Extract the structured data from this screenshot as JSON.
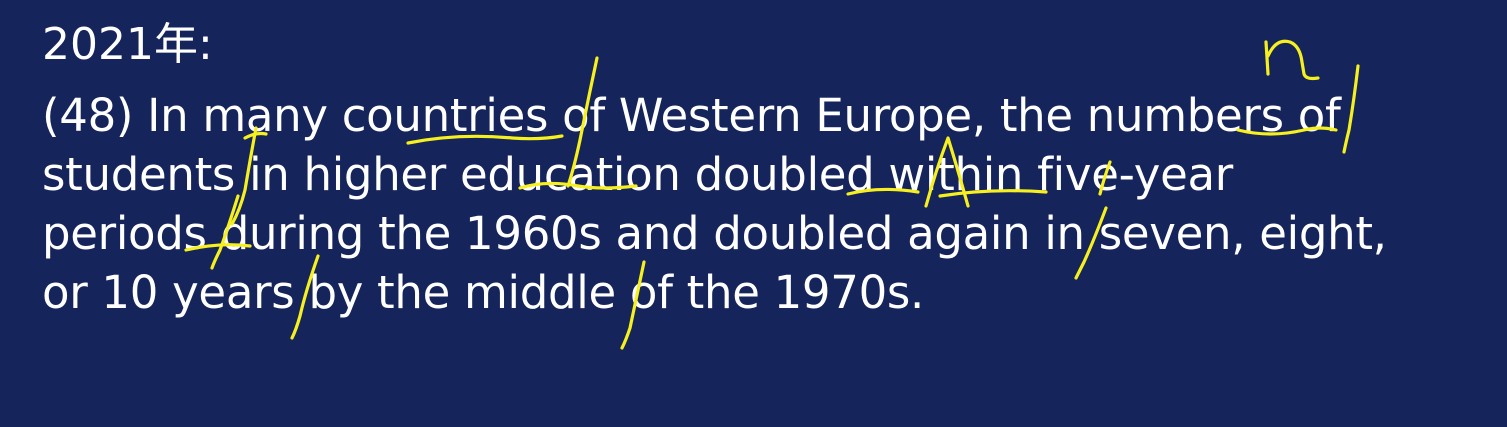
{
  "slide": {
    "background": "#15245b",
    "text_color": "#ffffff",
    "heading": "2021年:",
    "lines": [
      "(48) In many countries of Western Europe, the numbers of",
      "students in higher education doubled within five-year",
      "periods during the 1960s and doubled again in seven, eight,",
      "or 10 years by the middle of the 1970s."
    ]
  },
  "annotations": {
    "color": "#f6f01e",
    "handwritten_letter": "n",
    "marks": [
      "slash-after-countries",
      "slash-after-numbers",
      "slash-after-students",
      "caret-after-doubled",
      "slash-after-within",
      "slash-after-periods",
      "slash-after-again",
      "slash-after-years",
      "slash-after-middle",
      "underline-many",
      "underline-countries",
      "underline-education",
      "underline-doubled",
      "underline-within",
      "underline-bers",
      "underline-during"
    ]
  }
}
